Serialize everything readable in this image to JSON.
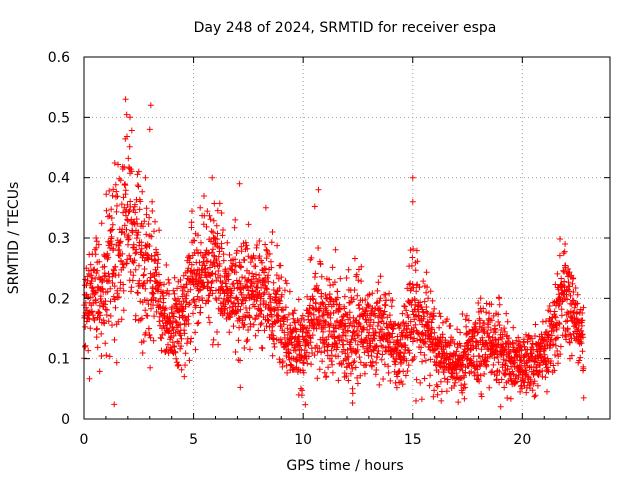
{
  "chart_data": {
    "type": "scatter",
    "title": "Day 248 of 2024, SRMTID for receiver espa",
    "xlabel": "GPS time / hours",
    "ylabel": "SRMTID / TECUs",
    "xlim": [
      0,
      24
    ],
    "ylim": [
      0,
      0.6
    ],
    "xticks": [
      0,
      5,
      10,
      15,
      20
    ],
    "xtick_labels": [
      "0",
      "5",
      "10",
      "15",
      "20"
    ],
    "yticks": [
      0,
      0.1,
      0.2,
      0.3,
      0.4,
      0.5,
      0.6
    ],
    "ytick_labels": [
      "0",
      "0.1",
      "0.2",
      "0.3",
      "0.4",
      "0.5",
      "0.6"
    ],
    "grid": true,
    "marker": "plus",
    "series": [
      {
        "name": "SRMTID",
        "color": "#ff0000",
        "trend": [
          [
            0.0,
            0.19,
            0.035
          ],
          [
            0.5,
            0.21,
            0.045
          ],
          [
            1.0,
            0.22,
            0.06
          ],
          [
            1.5,
            0.28,
            0.08
          ],
          [
            2.0,
            0.33,
            0.08
          ],
          [
            2.5,
            0.28,
            0.07
          ],
          [
            3.0,
            0.24,
            0.06
          ],
          [
            3.5,
            0.2,
            0.035
          ],
          [
            4.0,
            0.15,
            0.035
          ],
          [
            4.5,
            0.17,
            0.04
          ],
          [
            5.0,
            0.23,
            0.05
          ],
          [
            5.5,
            0.24,
            0.05
          ],
          [
            6.0,
            0.25,
            0.05
          ],
          [
            6.5,
            0.2,
            0.045
          ],
          [
            7.0,
            0.22,
            0.05
          ],
          [
            7.5,
            0.2,
            0.045
          ],
          [
            8.0,
            0.22,
            0.045
          ],
          [
            8.5,
            0.2,
            0.05
          ],
          [
            9.0,
            0.16,
            0.04
          ],
          [
            9.5,
            0.13,
            0.035
          ],
          [
            10.0,
            0.11,
            0.035
          ],
          [
            10.5,
            0.2,
            0.05
          ],
          [
            11.0,
            0.16,
            0.045
          ],
          [
            11.5,
            0.15,
            0.045
          ],
          [
            12.0,
            0.13,
            0.04
          ],
          [
            12.5,
            0.16,
            0.045
          ],
          [
            13.0,
            0.14,
            0.04
          ],
          [
            13.5,
            0.16,
            0.04
          ],
          [
            14.0,
            0.13,
            0.035
          ],
          [
            14.5,
            0.11,
            0.03
          ],
          [
            15.0,
            0.18,
            0.05
          ],
          [
            15.5,
            0.16,
            0.045
          ],
          [
            16.0,
            0.12,
            0.035
          ],
          [
            16.5,
            0.1,
            0.025
          ],
          [
            17.0,
            0.09,
            0.025
          ],
          [
            17.5,
            0.11,
            0.03
          ],
          [
            18.0,
            0.12,
            0.035
          ],
          [
            18.5,
            0.13,
            0.035
          ],
          [
            19.0,
            0.12,
            0.03
          ],
          [
            19.5,
            0.1,
            0.025
          ],
          [
            20.0,
            0.09,
            0.025
          ],
          [
            20.5,
            0.1,
            0.025
          ],
          [
            21.0,
            0.11,
            0.025
          ],
          [
            21.5,
            0.17,
            0.04
          ],
          [
            22.0,
            0.21,
            0.04
          ],
          [
            22.5,
            0.15,
            0.03
          ],
          [
            22.8,
            0.14,
            0.03
          ]
        ],
        "peaks": [
          [
            1.9,
            0.53
          ],
          [
            2.1,
            0.5
          ],
          [
            2.5,
            0.41
          ],
          [
            2.8,
            0.4
          ],
          [
            3.05,
            0.52
          ],
          [
            3.0,
            0.48
          ],
          [
            5.85,
            0.4
          ],
          [
            7.1,
            0.39
          ],
          [
            10.7,
            0.38
          ],
          [
            15.0,
            0.4
          ],
          [
            15.0,
            0.36
          ],
          [
            14.9,
            0.28
          ],
          [
            6.9,
            0.33
          ],
          [
            8.3,
            0.35
          ],
          [
            8.6,
            0.31
          ],
          [
            9.8,
            0.04
          ],
          [
            4.3,
            0.09
          ],
          [
            4.2,
            0.1
          ],
          [
            15.15,
            0.03
          ],
          [
            16.3,
            0.03
          ],
          [
            19.9,
            0.045
          ],
          [
            21.95,
            0.29
          ],
          [
            12.25,
            0.05
          ],
          [
            1.3,
            0.37
          ],
          [
            0.55,
            0.3
          ],
          [
            5.3,
            0.35
          ],
          [
            18.1,
            0.2
          ],
          [
            20.25,
            0.07
          ]
        ],
        "n_points": 3000,
        "seed": 248
      }
    ]
  }
}
